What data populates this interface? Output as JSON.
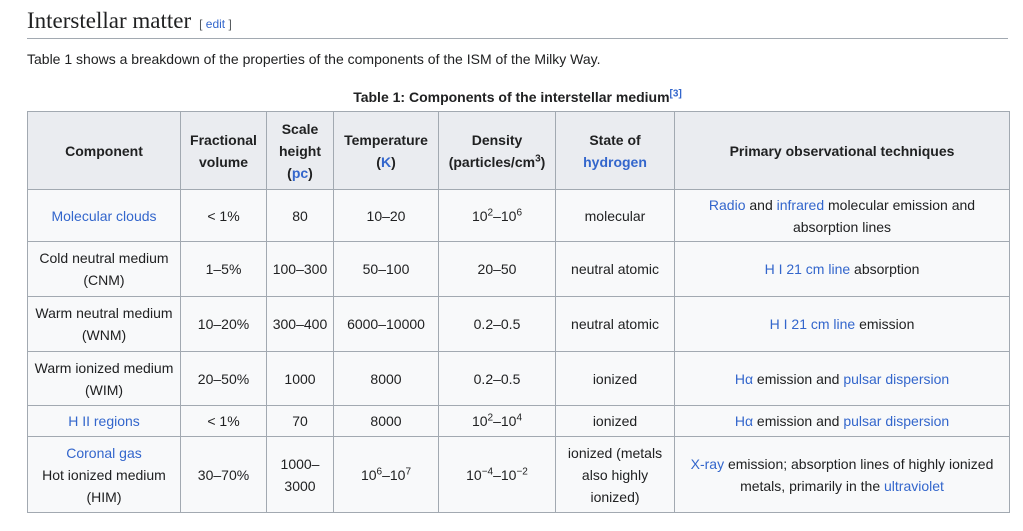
{
  "header": {
    "title": "Interstellar matter",
    "edit": "edit"
  },
  "intro": "Table 1 shows a breakdown of the properties of the components of the ISM of the Milky Way.",
  "table": {
    "caption": [
      "Table 1: Components of the interstellar medium",
      "[3]"
    ],
    "columns": [
      [
        "Component"
      ],
      [
        "Fractional volume"
      ],
      [
        "Scale height",
        "(",
        "pc",
        ")"
      ],
      [
        "Temperature",
        "(",
        "K",
        ")"
      ],
      [
        "Density (particles/cm",
        "3",
        ")"
      ],
      [
        "State of",
        "hydrogen"
      ],
      [
        "Primary observational techniques"
      ]
    ],
    "rows": [
      [
        [
          "Molecular clouds"
        ],
        [
          "< 1%"
        ],
        [
          "80"
        ],
        [
          "10–20"
        ],
        [
          "10",
          "2",
          "–10",
          "6"
        ],
        [
          "molecular"
        ],
        [
          "Radio",
          " and ",
          "infrared",
          " molecular emission and absorption lines"
        ]
      ],
      [
        [
          "Cold neutral medium (CNM)"
        ],
        [
          "1–5%"
        ],
        [
          "100–300"
        ],
        [
          "50–100"
        ],
        [
          "20–50"
        ],
        [
          "neutral atomic"
        ],
        [
          "H I 21 cm line",
          " absorption"
        ]
      ],
      [
        [
          "Warm neutral medium (WNM)"
        ],
        [
          "10–20%"
        ],
        [
          "300–400"
        ],
        [
          "6000–10000"
        ],
        [
          "0.2–0.5"
        ],
        [
          "neutral atomic"
        ],
        [
          "H I 21 cm line",
          " emission"
        ]
      ],
      [
        [
          "Warm ionized medium (WIM)"
        ],
        [
          "20–50%"
        ],
        [
          "1000"
        ],
        [
          "8000"
        ],
        [
          "0.2–0.5"
        ],
        [
          "ionized"
        ],
        [
          "Hα",
          " emission and ",
          "pulsar dispersion"
        ]
      ],
      [
        [
          "H II regions"
        ],
        [
          "< 1%"
        ],
        [
          "70"
        ],
        [
          "8000"
        ],
        [
          "10",
          "2",
          "–10",
          "4"
        ],
        [
          "ionized"
        ],
        [
          "Hα",
          " emission and ",
          "pulsar dispersion"
        ]
      ],
      [
        [
          "Coronal gas",
          "Hot ionized medium (HIM)"
        ],
        [
          "30–70%"
        ],
        [
          "1000–3000"
        ],
        [
          "10",
          "6",
          "–10",
          "7"
        ],
        [
          "10",
          "−4",
          "–10",
          "−2"
        ],
        [
          "ionized (metals also highly ionized)"
        ],
        [
          "X-ray",
          " emission; absorption lines of highly ionized metals, primarily in the ",
          "ultraviolet"
        ]
      ]
    ]
  }
}
